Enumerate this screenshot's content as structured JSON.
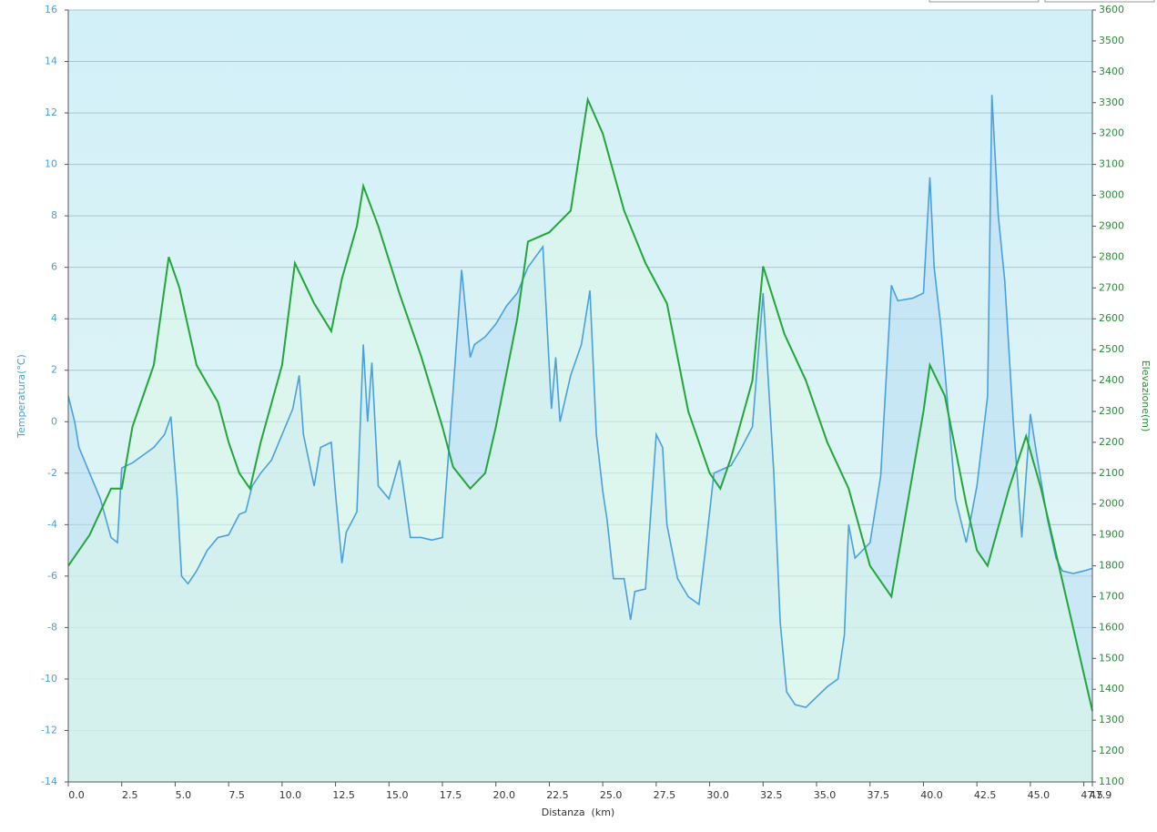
{
  "chart_data": {
    "type": "line",
    "x_label": "Distanza  (km)",
    "y_label": "Temperatura(°C)",
    "y2_label": "Elevazione(m)",
    "xlim": [
      0,
      47.9
    ],
    "xticks": [
      {
        "value": 0,
        "label": "0.0"
      },
      2.5,
      {
        "value": 5,
        "label": "5.0"
      },
      7.5,
      {
        "value": 10,
        "label": "10.0"
      },
      12.5,
      {
        "value": 15,
        "label": "15.0"
      },
      17.5,
      {
        "value": 20,
        "label": "20.0"
      },
      22.5,
      {
        "value": 25,
        "label": "25.0"
      },
      27.5,
      {
        "value": 30,
        "label": "30.0"
      },
      32.5,
      {
        "value": 35,
        "label": "35.0"
      },
      37.5,
      {
        "value": 40,
        "label": "40.0"
      },
      42.5,
      {
        "value": 45,
        "label": "45.0"
      },
      47.5,
      47.9
    ],
    "ylim": [
      -14,
      16
    ],
    "yticks": [
      -14,
      -12,
      -10,
      -8,
      -6,
      -4,
      -2,
      0,
      2,
      4,
      6,
      8,
      10,
      12,
      14,
      16
    ],
    "y2lim": [
      1100,
      3600
    ],
    "y2ticks": [
      1100,
      1200,
      1300,
      1400,
      1500,
      1600,
      1700,
      1800,
      1900,
      2000,
      2100,
      2200,
      2300,
      2400,
      2500,
      2600,
      2700,
      2800,
      2900,
      3000,
      3100,
      3200,
      3300,
      3400,
      3500,
      3600
    ],
    "grid": true,
    "series": [
      {
        "name": "Temperatura",
        "color": "#4a9fe0",
        "fill": "#b8dcf4",
        "x": [
          0,
          0.3,
          0.5,
          1,
          1.5,
          2,
          2.3,
          2.5,
          3,
          3.5,
          4,
          4.5,
          4.8,
          5.1,
          5.3,
          5.6,
          6,
          6.5,
          7,
          7.5,
          8,
          8.3,
          8.6,
          9,
          9.5,
          10,
          10.5,
          10.8,
          11,
          11.5,
          11.8,
          12.3,
          12.5,
          12.8,
          13,
          13.5,
          13.8,
          14,
          14.2,
          14.5,
          15,
          15.5,
          16,
          16.5,
          17,
          17.5,
          18,
          18.4,
          18.8,
          19,
          19.5,
          20,
          20.5,
          21,
          21.5,
          22.2,
          22.6,
          22.8,
          23,
          23.5,
          24,
          24.4,
          24.7,
          25,
          25.2,
          25.5,
          26,
          26.3,
          26.5,
          27,
          27.5,
          27.8,
          28,
          28.5,
          29,
          29.5,
          29.8,
          30.2,
          31,
          31.5,
          32,
          32.5,
          33,
          33.3,
          33.6,
          34,
          34.5,
          35,
          35.5,
          36,
          36.3,
          36.5,
          36.8,
          37.5,
          38,
          38.5,
          38.8,
          39.5,
          40,
          40.3,
          40.5,
          40.8,
          41,
          41.5,
          42,
          42.5,
          43,
          43.2,
          43.5,
          43.8,
          44.2,
          44.6,
          45,
          45.3,
          45.8,
          46.2,
          46.5,
          47,
          47.5,
          47.9
        ],
        "values": [
          1,
          0,
          -1,
          -2,
          -3,
          -4.5,
          -4.7,
          -1.8,
          -1.6,
          -1.3,
          -1,
          -0.5,
          0.2,
          -3,
          -6,
          -6.3,
          -5.8,
          -5,
          -4.5,
          -4.4,
          -3.6,
          -3.5,
          -2.5,
          -2,
          -1.5,
          -0.5,
          0.5,
          1.8,
          -0.5,
          -2.5,
          -1,
          -0.8,
          -2.8,
          -5.5,
          -4.3,
          -3.5,
          3,
          0,
          2.3,
          -2.5,
          -3,
          -1.5,
          -4.5,
          -4.5,
          -4.6,
          -4.5,
          1.2,
          5.9,
          2.5,
          3,
          3.3,
          3.8,
          4.5,
          5,
          6,
          6.8,
          0.5,
          2.5,
          0,
          1.8,
          3,
          5.1,
          -0.5,
          -2.7,
          -3.8,
          -6.1,
          -6.1,
          -7.7,
          -6.6,
          -6.5,
          -0.5,
          -1,
          -4,
          -6.1,
          -6.8,
          -7.1,
          -5,
          -2,
          -1.7,
          -1,
          -0.2,
          5,
          -2,
          -7.8,
          -10.5,
          -11,
          -11.1,
          -10.7,
          -10.3,
          -10,
          -8.3,
          -4,
          -5.3,
          -4.7,
          -2.1,
          5.3,
          4.7,
          4.8,
          5,
          9.5,
          6,
          3.8,
          2,
          -3,
          -4.7,
          -2.5,
          1,
          12.7,
          8,
          5.5,
          0,
          -4.5,
          0.3,
          -1.3,
          -3.8,
          -5.3,
          -5.8,
          -5.9,
          -5.8,
          -5.7
        ]
      },
      {
        "name": "Elevazione",
        "color": "#22a63a",
        "fill": "#dcf8e8",
        "axis": "y2",
        "x": [
          0,
          1,
          2,
          2.5,
          3,
          4,
          4.7,
          5.2,
          6,
          7,
          7.5,
          8,
          8.5,
          9,
          10,
          10.6,
          11.5,
          12.3,
          12.8,
          13.5,
          13.8,
          14.5,
          15.5,
          16.5,
          17.5,
          18,
          18.8,
          19.5,
          20,
          21,
          21.5,
          22.5,
          23.5,
          24.3,
          25,
          26,
          27,
          28,
          29,
          30,
          30.5,
          31,
          32,
          32.5,
          33.5,
          34.5,
          35.5,
          36.5,
          37.5,
          38.5,
          39,
          40,
          40.3,
          41,
          42,
          42.5,
          43,
          44,
          44.8,
          45.5,
          46.5,
          47.5,
          47.9
        ],
        "values": [
          1800,
          1900,
          2050,
          2050,
          2250,
          2450,
          2800,
          2700,
          2450,
          2330,
          2200,
          2100,
          2050,
          2200,
          2450,
          2780,
          2650,
          2560,
          2730,
          2900,
          3030,
          2900,
          2680,
          2480,
          2250,
          2120,
          2050,
          2100,
          2250,
          2600,
          2850,
          2880,
          2950,
          3310,
          3200,
          2950,
          2780,
          2650,
          2300,
          2100,
          2050,
          2150,
          2400,
          2770,
          2550,
          2400,
          2200,
          2050,
          1800,
          1700,
          1900,
          2300,
          2450,
          2350,
          2000,
          1850,
          1800,
          2050,
          2220,
          2050,
          1750,
          1450,
          1330
        ]
      }
    ]
  }
}
